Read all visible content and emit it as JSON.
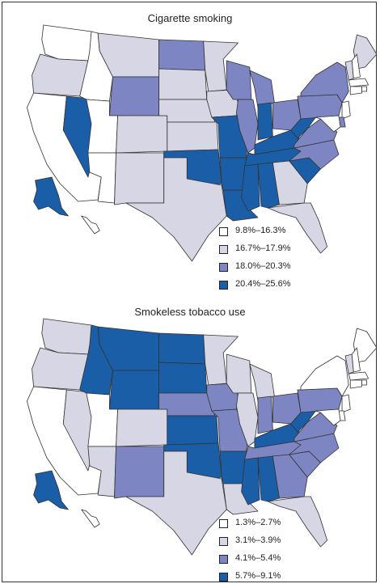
{
  "colors": {
    "c0": "#ffffff",
    "c1": "#d6d6e4",
    "c2": "#7d86c3",
    "c3": "#1a5ea8"
  },
  "maps": [
    {
      "title": "Cigarette smoking",
      "legend": [
        {
          "label": "9.8%–16.3%",
          "cls": "c0"
        },
        {
          "label": "16.7%–17.9%",
          "cls": "c1"
        },
        {
          "label": "18.0%–20.3%",
          "cls": "c2"
        },
        {
          "label": "20.4%–25.6%",
          "cls": "c3"
        }
      ],
      "states": {
        "WA": "c0",
        "OR": "c1",
        "CA": "c0",
        "NV": "c3",
        "ID": "c0",
        "MT": "c1",
        "WY": "c2",
        "UT": "c0",
        "AZ": "c0",
        "CO": "c1",
        "NM": "c1",
        "ND": "c2",
        "SD": "c1",
        "NE": "c1",
        "KS": "c1",
        "OK": "c3",
        "TX": "c1",
        "MN": "c1",
        "IA": "c1",
        "MO": "c3",
        "AR": "c3",
        "LA": "c3",
        "WI": "c2",
        "IL": "c2",
        "MI": "c2",
        "IN": "c3",
        "OH": "c2",
        "KY": "c3",
        "TN": "c3",
        "MS": "c3",
        "AL": "c3",
        "GA": "c1",
        "FL": "c1",
        "SC": "c3",
        "NC": "c2",
        "VA": "c2",
        "WV": "c3",
        "PA": "c2",
        "NY": "c2",
        "ME": "c1",
        "VT": "c1",
        "NH": "c0",
        "MA": "c0",
        "RI": "c0",
        "CT": "c0",
        "NJ": "c0",
        "DE": "c2",
        "MD": "c0",
        "AK": "c3",
        "HI": "c0"
      }
    },
    {
      "title": "Smokeless tobacco use",
      "legend": [
        {
          "label": "1.3%–2.7%",
          "cls": "c0"
        },
        {
          "label": "3.1%–3.9%",
          "cls": "c1"
        },
        {
          "label": "4.1%–5.4%",
          "cls": "c2"
        },
        {
          "label": "5.7%–9.1%",
          "cls": "c3"
        }
      ],
      "states": {
        "WA": "c1",
        "OR": "c1",
        "CA": "c0",
        "NV": "c1",
        "ID": "c3",
        "MT": "c3",
        "WY": "c3",
        "UT": "c0",
        "AZ": "c1",
        "CO": "c1",
        "NM": "c2",
        "ND": "c3",
        "SD": "c3",
        "NE": "c2",
        "KS": "c3",
        "OK": "c3",
        "TX": "c1",
        "MN": "c1",
        "IA": "c2",
        "MO": "c2",
        "AR": "c3",
        "LA": "c1",
        "WI": "c1",
        "IL": "c1",
        "MI": "c1",
        "IN": "c2",
        "OH": "c2",
        "KY": "c3",
        "TN": "c2",
        "MS": "c3",
        "AL": "c3",
        "GA": "c2",
        "FL": "c1",
        "SC": "c2",
        "NC": "c2",
        "VA": "c2",
        "WV": "c3",
        "PA": "c2",
        "NY": "c0",
        "ME": "c0",
        "VT": "c1",
        "NH": "c0",
        "MA": "c0",
        "RI": "c0",
        "CT": "c0",
        "NJ": "c0",
        "DE": "c0",
        "MD": "c0",
        "AK": "c3",
        "HI": "c0"
      }
    }
  ]
}
